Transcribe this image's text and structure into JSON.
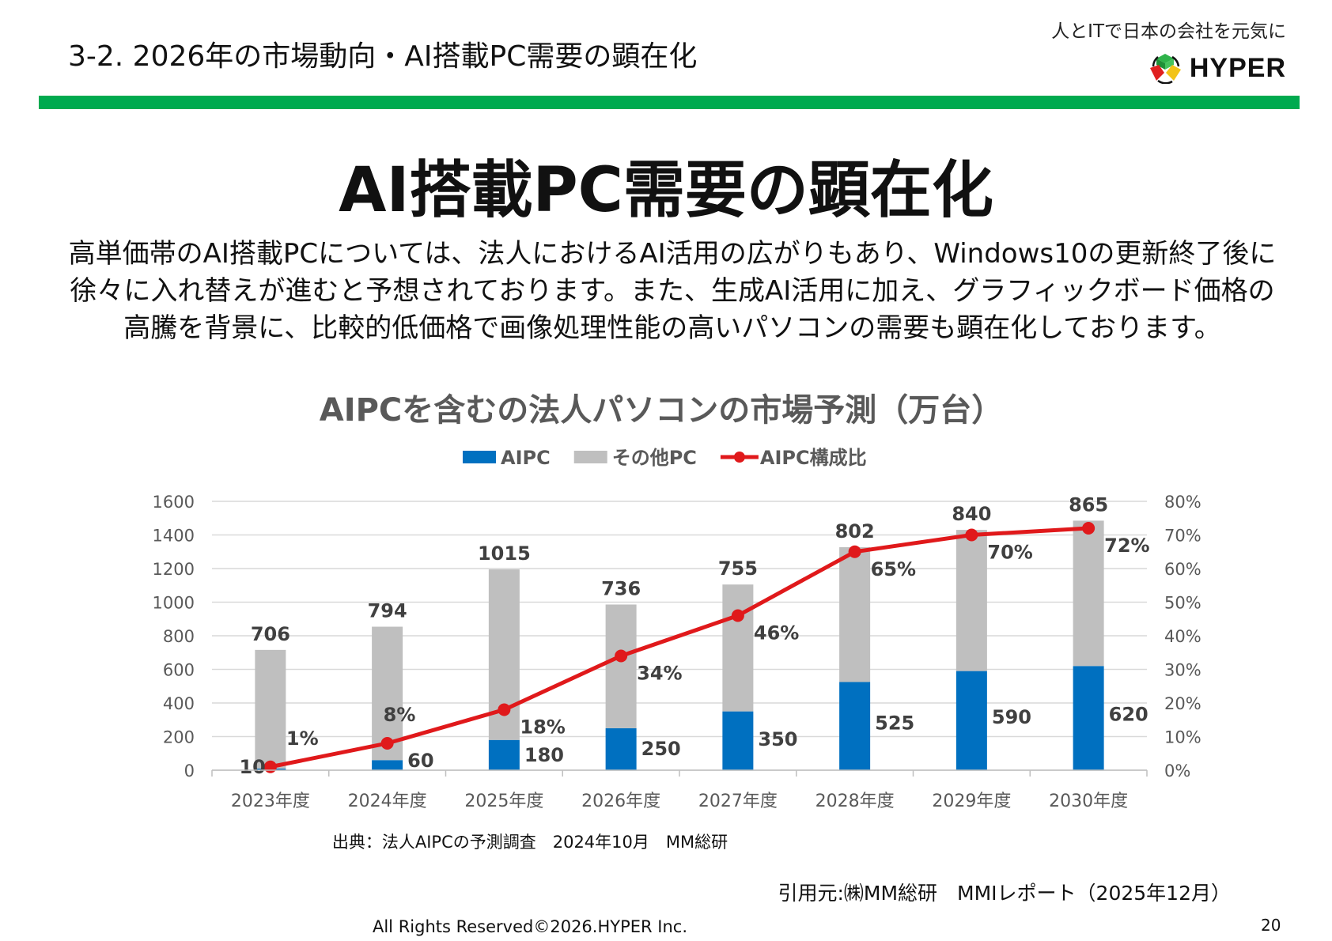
{
  "header": {
    "section_title": "3-2. 2026年の市場動向・AI搭載PC需要の顕在化",
    "tagline": "人とITで日本の会社を元気に",
    "logo_text": "HYPER"
  },
  "main_title": "AI搭載PC需要の顕在化",
  "body_text": "高単価帯のAI搭載PCについては、法人におけるAI活用の広がりもあり、Windows10の更新終了後に徐々に入れ替えが進むと予想されております。また、生成AI活用に加え、グラフィックボード価格の高騰を背景に、比較的低価格で画像処理性能の高いパソコンの需要も顕在化しております。",
  "chart_data": {
    "type": "bar",
    "stacked": true,
    "title": "AIPCを含むの法人パソコンの市場予測（万台）",
    "categories": [
      "2023年度",
      "2024年度",
      "2025年度",
      "2026年度",
      "2027年度",
      "2028年度",
      "2029年度",
      "2030年度"
    ],
    "series": [
      {
        "name": "AIPC",
        "type": "bar",
        "axis": "left",
        "color": "#0070c0",
        "values": [
          10,
          60,
          180,
          250,
          350,
          525,
          590,
          620
        ]
      },
      {
        "name": "その他PC",
        "type": "bar",
        "axis": "left",
        "color": "#bfbfbf",
        "values": [
          706,
          794,
          1015,
          736,
          755,
          802,
          840,
          865
        ]
      },
      {
        "name": "AIPC構成比",
        "type": "line",
        "axis": "right",
        "color": "#e0191b",
        "values": [
          1,
          8,
          18,
          34,
          46,
          65,
          70,
          72
        ],
        "unit": "%"
      }
    ],
    "y_left": {
      "min": 0,
      "max": 1600,
      "ticks": [
        0,
        200,
        400,
        600,
        800,
        1000,
        1200,
        1400,
        1600
      ]
    },
    "y_right": {
      "min": 0,
      "max": 80,
      "ticks": [
        "0%",
        "10%",
        "20%",
        "30%",
        "40%",
        "50%",
        "60%",
        "70%",
        "80%"
      ]
    },
    "grid": true,
    "legend_position": "top"
  },
  "source": "出典：法人AIPCの予測調査　2024年10月　MM総研",
  "citation": "引用元:㈱MM総研　MMIレポート（2025年12月）",
  "footer": "All Rights Reserved©2026.HYPER Inc.",
  "page_number": "20"
}
